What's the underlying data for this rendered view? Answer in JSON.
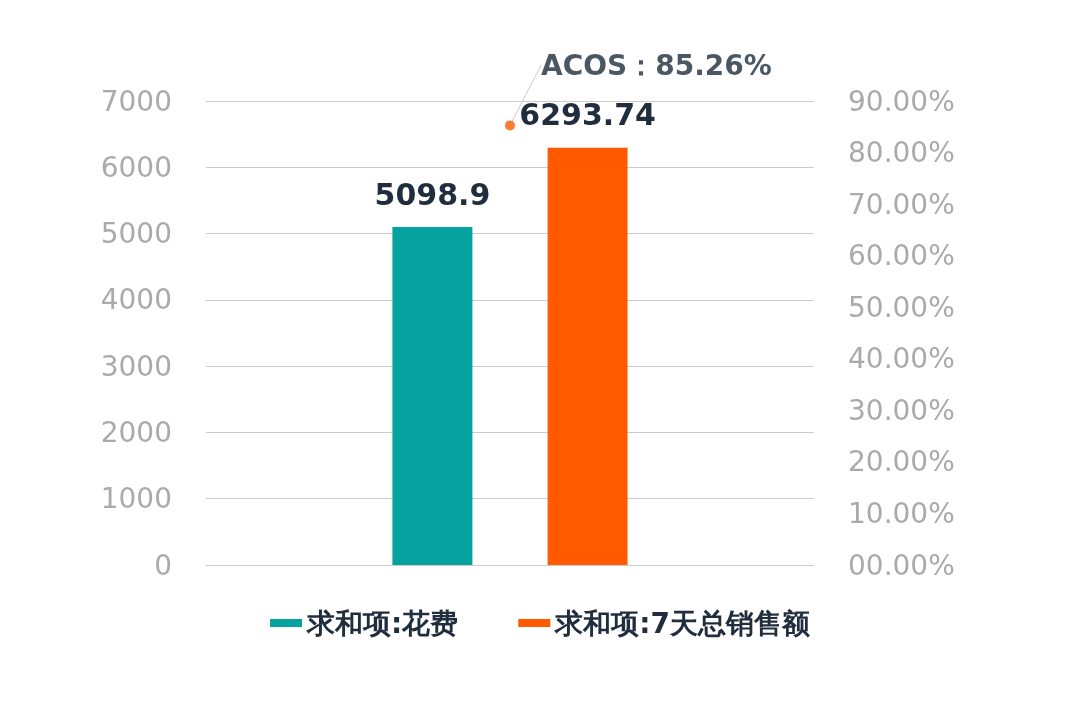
{
  "chart_data": {
    "type": "bar",
    "categories": [
      null
    ],
    "series": [
      {
        "name": "求和项:花费",
        "color": "#05a29f",
        "values": [
          5098.9
        ]
      },
      {
        "name": "求和项:7天总销售额",
        "color": "#ff5a00",
        "values": [
          6293.74
        ]
      },
      {
        "type": "scatter",
        "axis": "y2",
        "color": "#ff5a00",
        "values": [
          85.26
        ],
        "value_labels": [
          "ACOS：85.26%"
        ]
      }
    ],
    "data_labels": true,
    "ylim": [
      0,
      7000
    ],
    "yticks": [
      0,
      1000,
      2000,
      3000,
      4000,
      5000,
      6000,
      7000
    ],
    "y2lim": [
      0,
      90
    ],
    "y2ticks": [
      {
        "value": 0,
        "label": "00.00%"
      },
      {
        "value": 10,
        "label": "10.00%"
      },
      {
        "value": 20,
        "label": "20.00%"
      },
      {
        "value": 30,
        "label": "30.00%"
      },
      {
        "value": 40,
        "label": "40.00%"
      },
      {
        "value": 50,
        "label": "50.00%"
      },
      {
        "value": 60,
        "label": "60.00%"
      },
      {
        "value": 70,
        "label": "70.00%"
      },
      {
        "value": 80,
        "label": "80.00%"
      },
      {
        "value": 90,
        "label": "90.00%"
      }
    ],
    "grid": "y",
    "legend": "bottom",
    "marker": "circle"
  }
}
